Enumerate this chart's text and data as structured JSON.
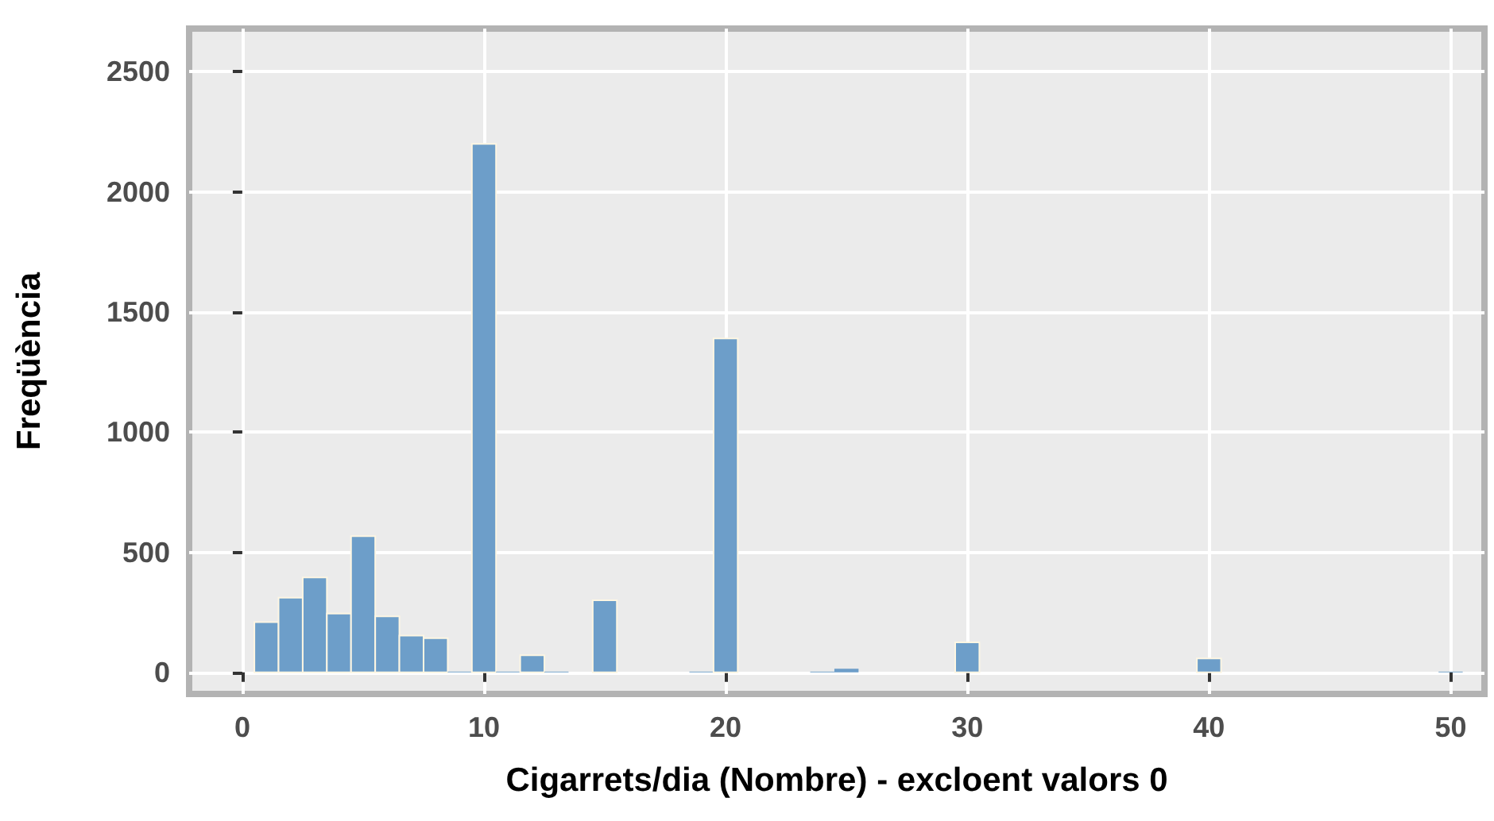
{
  "chart_data": {
    "type": "histogram",
    "xlabel": "Cigarrets/dia (Nombre) - excloent valors 0",
    "ylabel": "Freqüència",
    "bins": [
      0.5,
      1.5,
      2.5,
      3.5,
      4.5,
      5.5,
      6.5,
      7.5,
      8.5,
      9.5,
      10.5,
      11.5,
      12.5,
      13.5,
      14.5,
      15.5,
      16.5,
      17.5,
      18.5,
      19.5,
      20.5,
      21.5,
      22.5,
      23.5,
      24.5,
      25.5,
      26.5,
      27.5,
      28.5,
      29.5,
      30.5,
      31.5,
      32.5,
      33.5,
      34.5,
      35.5,
      36.5,
      37.5,
      38.5,
      39.5,
      40.5,
      41.5,
      42.5,
      43.5,
      44.5,
      45.5,
      46.5,
      47.5,
      48.5,
      49.5,
      50.5
    ],
    "values": [
      209,
      311,
      395,
      245,
      567,
      233,
      153,
      142,
      3,
      2200,
      3,
      71,
      3,
      0,
      300,
      0,
      0,
      0,
      3,
      1390,
      0,
      0,
      0,
      3,
      15,
      0,
      0,
      0,
      0,
      125,
      0,
      0,
      0,
      0,
      0,
      0,
      0,
      0,
      0,
      58,
      0,
      0,
      0,
      0,
      0,
      0,
      0,
      0,
      0,
      3
    ],
    "color": "#6d9ec9",
    "xlim": [
      -2.2,
      51.4
    ],
    "xticks": [
      0,
      10,
      20,
      30,
      40,
      50
    ],
    "ylim": [
      -90,
      2680
    ],
    "yticks": [
      0,
      500,
      1000,
      1500,
      2000,
      2500
    ],
    "grid": true
  }
}
